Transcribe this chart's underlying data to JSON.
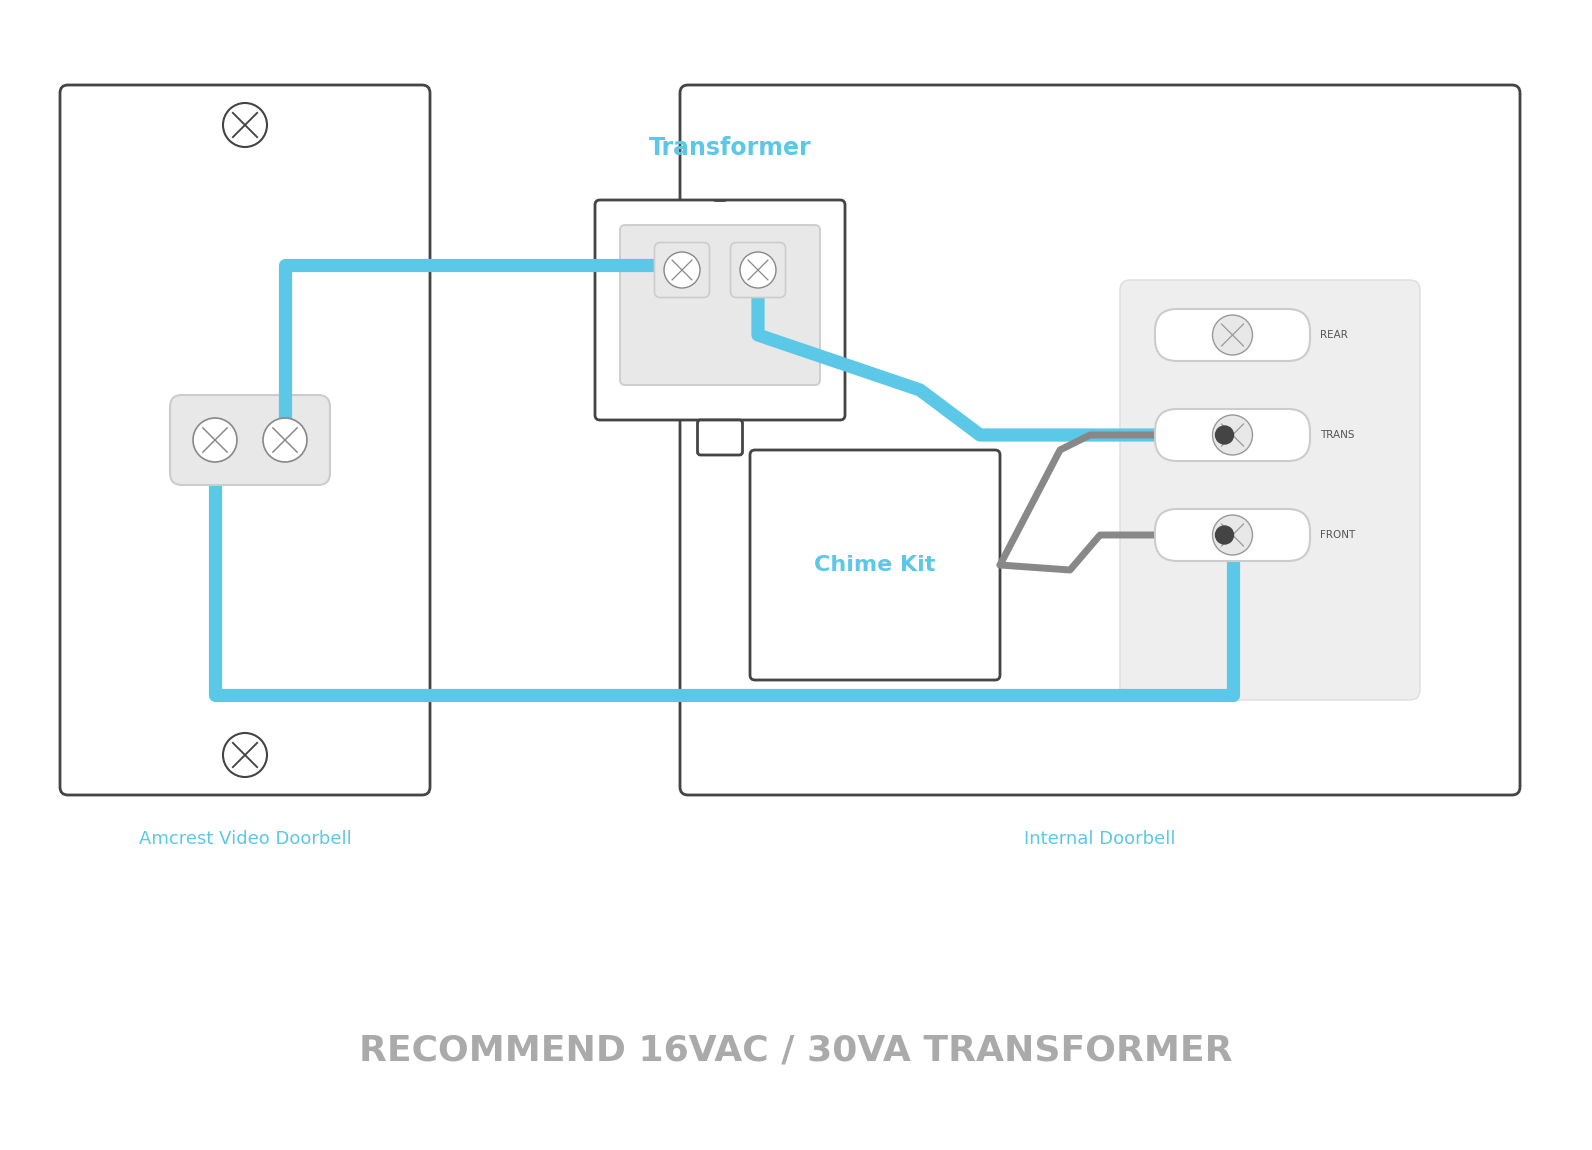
{
  "bg_color": "#ffffff",
  "wire_blue": "#5BC8E8",
  "wire_gray": "#888888",
  "outline_color": "#444444",
  "light_gray": "#e8e8e8",
  "med_gray": "#cccccc",
  "blue_label": "#5BC8E8",
  "title_text": "RECOMMEND 16VAC / 30VA TRANSFORMER",
  "title_color": "#888888",
  "label_doorbell": "Amcrest Video Doorbell",
  "label_internal": "Internal Doorbell",
  "label_transformer": "Transformer",
  "label_chime": "Chime Kit",
  "label_rear": "REAR",
  "label_trans": "TRANS",
  "label_front": "FRONT"
}
